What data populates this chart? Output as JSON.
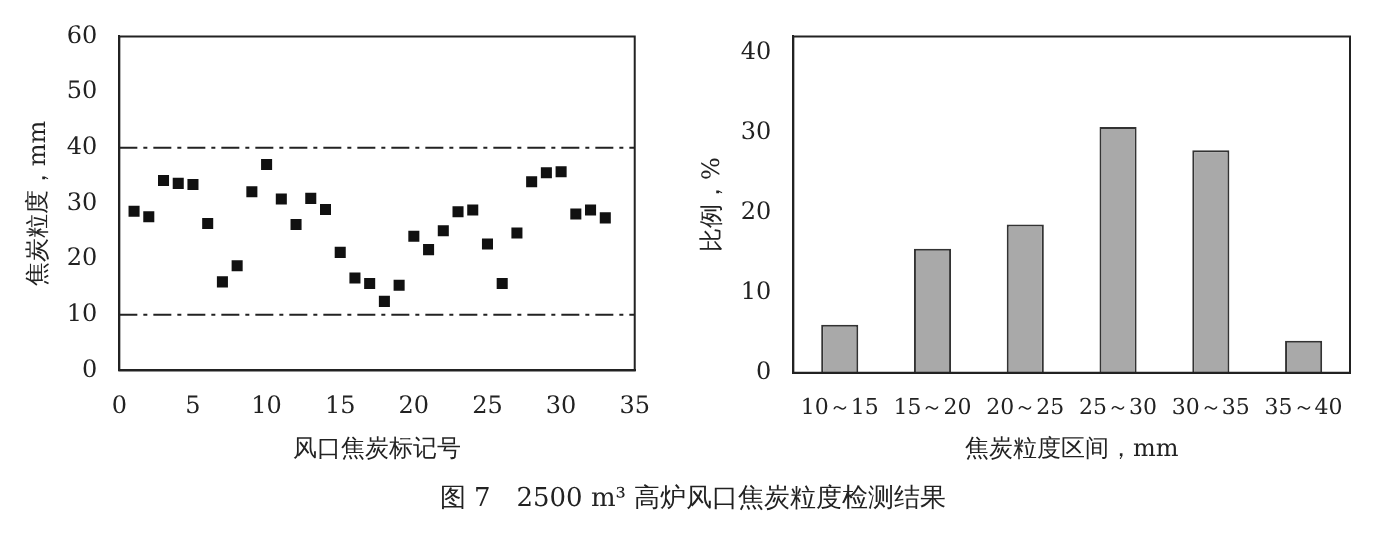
{
  "chart_data": [
    {
      "type": "scatter",
      "xlabel": "风口焦炭标记号",
      "ylabel": "焦炭粒度，mm",
      "x": [
        1,
        2,
        3,
        4,
        5,
        6,
        7,
        8,
        9,
        10,
        11,
        12,
        13,
        14,
        15,
        16,
        17,
        18,
        19,
        20,
        21,
        22,
        23,
        24,
        25,
        26,
        27,
        28,
        29,
        30,
        31,
        32,
        33
      ],
      "series": [
        {
          "color": "#111111",
          "values": [
            28.6,
            27.6,
            34.1,
            33.6,
            33.4,
            26.4,
            15.9,
            18.8,
            32.1,
            37.0,
            30.8,
            26.2,
            30.9,
            28.9,
            21.2,
            16.6,
            15.6,
            12.4,
            15.3,
            24.1,
            21.7,
            25.1,
            28.5,
            28.8,
            22.7,
            15.6,
            24.7,
            33.9,
            35.5,
            35.7,
            28.1,
            28.8,
            27.4
          ]
        }
      ],
      "xlim": [
        0,
        35
      ],
      "xticks": [
        0,
        5,
        10,
        15,
        20,
        25,
        30,
        35
      ],
      "ylim": [
        0,
        60
      ],
      "yticks": [
        0,
        10,
        20,
        30,
        40,
        50,
        60
      ],
      "marker": "square",
      "grid": false,
      "legend": false,
      "ref_lines": [
        {
          "axis": "y",
          "value": 40,
          "color": "#222222",
          "line_style": "dashed"
        },
        {
          "axis": "y",
          "value": 10,
          "color": "#222222",
          "line_style": "dashed"
        }
      ],
      "annotations": [
        "图 7　2500 m³ 高炉风口焦炭粒度检测结果"
      ]
    },
    {
      "type": "bar",
      "xlabel": "焦炭粒度区间，mm",
      "ylabel": "比例，%",
      "categories": [
        "10～15",
        "15～20",
        "20～25",
        "25～30",
        "30～35",
        "35～40"
      ],
      "series": [
        {
          "color": "#a9a9a9",
          "values": [
            6,
            15.5,
            18.5,
            30.7,
            27.8,
            4
          ]
        }
      ],
      "ylim": [
        0,
        42
      ],
      "yticks": [
        0,
        10,
        20,
        30,
        40
      ],
      "grid": false,
      "legend": false
    }
  ]
}
